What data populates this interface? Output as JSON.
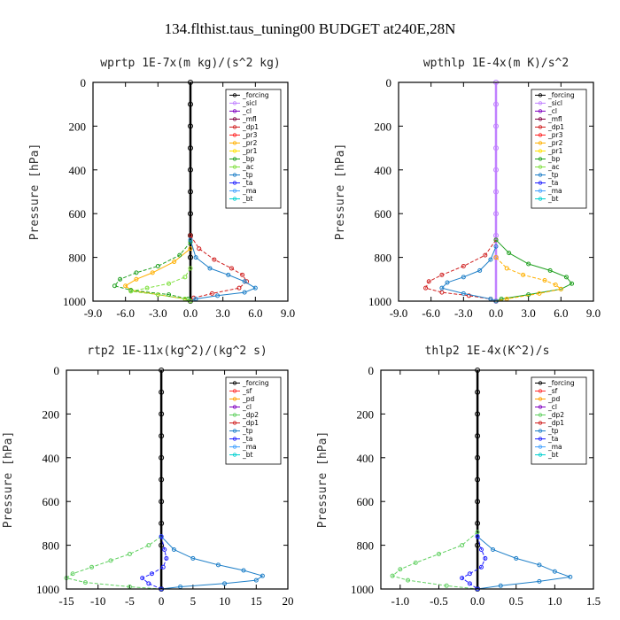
{
  "title": "134.flthist.taus_tuning00  BUDGET at240E,28N",
  "colors": {
    "forcing": "#000000",
    "sicl": "#c080ff",
    "cl": "#8000c0",
    "mfl": "#800040",
    "dp1": "#d02020",
    "pr3": "#ff2020",
    "pr2": "#ffb000",
    "pr1": "#ffe000",
    "bp": "#20a020",
    "ac": "#80e040",
    "tp": "#1e7fc8",
    "ta": "#2020ff",
    "ma": "#40a0ff",
    "bt": "#00d0d0",
    "sf": "#ff3030",
    "pd": "#ffa000",
    "dp2": "#60d060"
  },
  "chart_data": [
    {
      "type": "line",
      "title": "wprtp  1E-7x(m kg)/(s^2 kg)",
      "ylabel": "Pressure [hPa]",
      "xlim": [
        -9,
        9
      ],
      "ylim": [
        1000,
        0
      ],
      "xticks": [
        "-9.0",
        "-6.0",
        "-3.0",
        "0.0",
        "3.0",
        "6.0",
        "9.0"
      ],
      "yticks": [
        "0",
        "200",
        "400",
        "600",
        "800",
        "1000"
      ],
      "legend": {
        "position": "top-right",
        "entries": [
          "_forcing",
          "_sicl",
          "_cl",
          "_mfl",
          "_dp1",
          "_pr3",
          "_pr2",
          "_pr1",
          "_bp",
          "_ac",
          "_tp",
          "_ta",
          "_ma",
          "_bt"
        ]
      },
      "series": [
        {
          "name": "_forcing",
          "color_key": "forcing",
          "x": [
            0,
            0,
            0,
            0,
            0,
            0,
            0,
            0,
            0,
            0
          ],
          "y": [
            0,
            100,
            200,
            300,
            400,
            500,
            600,
            700,
            800,
            1000
          ]
        },
        {
          "name": "_dp1",
          "color_key": "dp1",
          "x": [
            0,
            0.8,
            2.2,
            3.8,
            4.8,
            5.2,
            4.5,
            2.0,
            0.3,
            0
          ],
          "y": [
            700,
            760,
            810,
            850,
            880,
            910,
            940,
            965,
            985,
            1000
          ]
        },
        {
          "name": "_pr2",
          "color_key": "pr2",
          "x": [
            0,
            -1.5,
            -3.5,
            -5.0,
            -6.0,
            -5.5,
            -3.0,
            -0.5,
            0
          ],
          "y": [
            760,
            820,
            870,
            900,
            930,
            950,
            970,
            990,
            1000
          ]
        },
        {
          "name": "_bp",
          "color_key": "bp",
          "x": [
            0,
            -1.0,
            -3.0,
            -5.0,
            -6.5,
            -7.0,
            -5.5,
            -2.0,
            -0.2,
            0
          ],
          "y": [
            730,
            790,
            840,
            870,
            900,
            930,
            950,
            970,
            990,
            1000
          ]
        },
        {
          "name": "_tp",
          "color_key": "tp",
          "x": [
            0,
            0.5,
            1.8,
            3.5,
            5.0,
            6.0,
            5.0,
            2.5,
            0.5,
            0
          ],
          "y": [
            720,
            800,
            850,
            880,
            910,
            940,
            960,
            975,
            990,
            1000
          ]
        },
        {
          "name": "_ac",
          "color_key": "ac",
          "x": [
            0,
            -0.5,
            -2.0,
            -4.0,
            -5.5,
            -3.0,
            -0.5,
            0
          ],
          "y": [
            850,
            890,
            920,
            940,
            955,
            970,
            990,
            1000
          ]
        }
      ]
    },
    {
      "type": "line",
      "title": "wpthlp  1E-4x(m K)/s^2",
      "ylabel": "Pressure [hPa]",
      "xlim": [
        -9,
        9
      ],
      "ylim": [
        1000,
        0
      ],
      "xticks": [
        "-9.0",
        "-6.0",
        "-3.0",
        "0.0",
        "3.0",
        "6.0",
        "9.0"
      ],
      "yticks": [
        "0",
        "200",
        "400",
        "600",
        "800",
        "1000"
      ],
      "legend": {
        "position": "top-right",
        "entries": [
          "_forcing",
          "_sicl",
          "_cl",
          "_mfl",
          "_dp1",
          "_pr3",
          "_pr2",
          "_pr1",
          "_bp",
          "_ac",
          "_tp",
          "_ta",
          "_ma",
          "_bt"
        ]
      },
      "series": [
        {
          "name": "_forcing",
          "color_key": "sicl",
          "x": [
            0,
            0,
            0,
            0,
            0,
            0,
            0,
            0,
            0,
            0
          ],
          "y": [
            0,
            100,
            200,
            300,
            400,
            500,
            600,
            700,
            800,
            1000
          ]
        },
        {
          "name": "_dp1",
          "color_key": "dp1",
          "x": [
            0,
            -1.0,
            -3.0,
            -5.0,
            -6.2,
            -6.5,
            -5.0,
            -2.5,
            -0.5,
            0
          ],
          "y": [
            720,
            790,
            840,
            880,
            910,
            940,
            960,
            975,
            990,
            1000
          ]
        },
        {
          "name": "_bp",
          "color_key": "bp",
          "x": [
            0,
            1.2,
            3.0,
            5.0,
            6.5,
            7.0,
            6.0,
            3.0,
            0.5,
            0
          ],
          "y": [
            720,
            780,
            830,
            860,
            890,
            920,
            945,
            970,
            990,
            1000
          ]
        },
        {
          "name": "_pr2",
          "color_key": "pr2",
          "x": [
            0,
            1.0,
            2.5,
            4.5,
            5.5,
            6.0,
            4.0,
            1.0,
            0
          ],
          "y": [
            800,
            850,
            880,
            905,
            925,
            945,
            965,
            990,
            1000
          ]
        },
        {
          "name": "_tp",
          "color_key": "tp",
          "x": [
            0,
            -0.5,
            -1.5,
            -3.0,
            -4.5,
            -5.0,
            -3.0,
            -0.5,
            0
          ],
          "y": [
            750,
            810,
            860,
            890,
            915,
            940,
            965,
            990,
            1000
          ]
        }
      ]
    },
    {
      "type": "line",
      "title": "rtp2  1E-11x(kg^2)/(kg^2 s)",
      "ylabel": "Pressure [hPa]",
      "xlim": [
        -15,
        20
      ],
      "ylim": [
        1000,
        0
      ],
      "xticks": [
        "-15",
        "-10",
        "-5",
        "0",
        "5",
        "10",
        "15",
        "20"
      ],
      "yticks": [
        "0",
        "200",
        "400",
        "600",
        "800",
        "1000"
      ],
      "legend": {
        "position": "top-right",
        "entries": [
          "_forcing",
          "_sf",
          "_pd",
          "_cl",
          "_dp2",
          "_dp1",
          "_tp",
          "_ta",
          "_ma",
          "_bt"
        ]
      },
      "series": [
        {
          "name": "_forcing",
          "color_key": "forcing",
          "x": [
            0,
            0,
            0,
            0,
            0,
            0,
            0,
            0,
            0,
            0
          ],
          "y": [
            0,
            100,
            200,
            300,
            400,
            500,
            600,
            700,
            800,
            1000
          ]
        },
        {
          "name": "_dp2",
          "color_key": "dp2",
          "x": [
            0,
            -2,
            -5,
            -8,
            -11,
            -14,
            -15,
            -12,
            -5,
            0
          ],
          "y": [
            760,
            800,
            840,
            870,
            900,
            930,
            950,
            970,
            990,
            1000
          ]
        },
        {
          "name": "_tp",
          "color_key": "tp",
          "x": [
            0,
            2,
            5,
            9,
            13,
            16,
            15,
            10,
            3,
            0
          ],
          "y": [
            760,
            820,
            860,
            890,
            915,
            940,
            960,
            975,
            990,
            1000
          ]
        },
        {
          "name": "_ta",
          "color_key": "ta",
          "x": [
            0,
            0.5,
            0.8,
            0.3,
            -1.5,
            -3.0,
            -2.0,
            0
          ],
          "y": [
            760,
            820,
            860,
            900,
            930,
            950,
            975,
            1000
          ]
        }
      ]
    },
    {
      "type": "line",
      "title": "thlp2  1E-4x(K^2)/s",
      "ylabel": "Pressure [hPa]",
      "xlim": [
        -1.25,
        1.5
      ],
      "ylim": [
        1000,
        0
      ],
      "xticks": [
        "-1.0",
        "-0.5",
        "0.0",
        "0.5",
        "1.0",
        "1.5"
      ],
      "yticks": [
        "0",
        "200",
        "400",
        "600",
        "800",
        "1000"
      ],
      "legend": {
        "position": "top-right",
        "entries": [
          "_forcing",
          "_sf",
          "_pd",
          "_cl",
          "_dp2",
          "_dp1",
          "_tp",
          "_ta",
          "_ma",
          "_bt"
        ]
      },
      "series": [
        {
          "name": "_forcing",
          "color_key": "forcing",
          "x": [
            0,
            0,
            0,
            0,
            0,
            0,
            0,
            0,
            0,
            0
          ],
          "y": [
            0,
            100,
            200,
            300,
            400,
            500,
            600,
            700,
            800,
            1000
          ]
        },
        {
          "name": "_dp2",
          "color_key": "dp2",
          "x": [
            0,
            -0.2,
            -0.5,
            -0.8,
            -1.0,
            -1.1,
            -0.9,
            -0.4,
            0
          ],
          "y": [
            740,
            800,
            840,
            880,
            910,
            940,
            960,
            985,
            1000
          ]
        },
        {
          "name": "_tp",
          "color_key": "tp",
          "x": [
            0,
            0.2,
            0.5,
            0.8,
            1.0,
            1.2,
            0.8,
            0.3,
            0
          ],
          "y": [
            760,
            820,
            860,
            890,
            920,
            945,
            965,
            985,
            1000
          ]
        },
        {
          "name": "_ta",
          "color_key": "ta",
          "x": [
            0,
            0.05,
            0.1,
            0.05,
            -0.1,
            -0.2,
            -0.1,
            0
          ],
          "y": [
            760,
            820,
            860,
            900,
            930,
            950,
            975,
            1000
          ]
        }
      ]
    }
  ]
}
